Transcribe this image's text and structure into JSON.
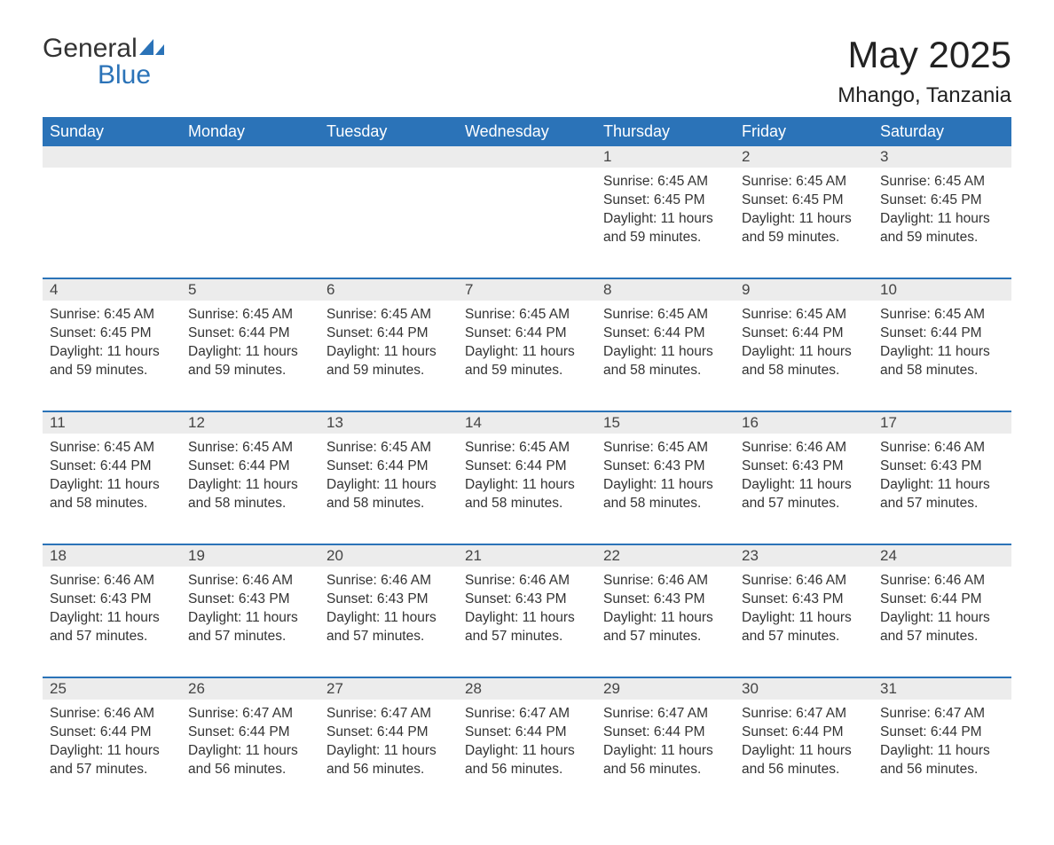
{
  "logo": {
    "word1": "General",
    "word2": "Blue",
    "icon_color": "#2b73b8"
  },
  "header": {
    "title": "May 2025",
    "subtitle": "Mhango, Tanzania"
  },
  "colors": {
    "header_bg": "#2b73b8",
    "header_text": "#ffffff",
    "daynum_bg": "#ececec",
    "border": "#2b73b8"
  },
  "day_labels": [
    "Sunday",
    "Monday",
    "Tuesday",
    "Wednesday",
    "Thursday",
    "Friday",
    "Saturday"
  ],
  "weeks": [
    [
      {
        "empty": true
      },
      {
        "empty": true
      },
      {
        "empty": true
      },
      {
        "empty": true
      },
      {
        "num": "1",
        "sunrise": "6:45 AM",
        "sunset": "6:45 PM",
        "daylight": "11 hours and 59 minutes."
      },
      {
        "num": "2",
        "sunrise": "6:45 AM",
        "sunset": "6:45 PM",
        "daylight": "11 hours and 59 minutes."
      },
      {
        "num": "3",
        "sunrise": "6:45 AM",
        "sunset": "6:45 PM",
        "daylight": "11 hours and 59 minutes."
      }
    ],
    [
      {
        "num": "4",
        "sunrise": "6:45 AM",
        "sunset": "6:45 PM",
        "daylight": "11 hours and 59 minutes."
      },
      {
        "num": "5",
        "sunrise": "6:45 AM",
        "sunset": "6:44 PM",
        "daylight": "11 hours and 59 minutes."
      },
      {
        "num": "6",
        "sunrise": "6:45 AM",
        "sunset": "6:44 PM",
        "daylight": "11 hours and 59 minutes."
      },
      {
        "num": "7",
        "sunrise": "6:45 AM",
        "sunset": "6:44 PM",
        "daylight": "11 hours and 59 minutes."
      },
      {
        "num": "8",
        "sunrise": "6:45 AM",
        "sunset": "6:44 PM",
        "daylight": "11 hours and 58 minutes."
      },
      {
        "num": "9",
        "sunrise": "6:45 AM",
        "sunset": "6:44 PM",
        "daylight": "11 hours and 58 minutes."
      },
      {
        "num": "10",
        "sunrise": "6:45 AM",
        "sunset": "6:44 PM",
        "daylight": "11 hours and 58 minutes."
      }
    ],
    [
      {
        "num": "11",
        "sunrise": "6:45 AM",
        "sunset": "6:44 PM",
        "daylight": "11 hours and 58 minutes."
      },
      {
        "num": "12",
        "sunrise": "6:45 AM",
        "sunset": "6:44 PM",
        "daylight": "11 hours and 58 minutes."
      },
      {
        "num": "13",
        "sunrise": "6:45 AM",
        "sunset": "6:44 PM",
        "daylight": "11 hours and 58 minutes."
      },
      {
        "num": "14",
        "sunrise": "6:45 AM",
        "sunset": "6:44 PM",
        "daylight": "11 hours and 58 minutes."
      },
      {
        "num": "15",
        "sunrise": "6:45 AM",
        "sunset": "6:43 PM",
        "daylight": "11 hours and 58 minutes."
      },
      {
        "num": "16",
        "sunrise": "6:46 AM",
        "sunset": "6:43 PM",
        "daylight": "11 hours and 57 minutes."
      },
      {
        "num": "17",
        "sunrise": "6:46 AM",
        "sunset": "6:43 PM",
        "daylight": "11 hours and 57 minutes."
      }
    ],
    [
      {
        "num": "18",
        "sunrise": "6:46 AM",
        "sunset": "6:43 PM",
        "daylight": "11 hours and 57 minutes."
      },
      {
        "num": "19",
        "sunrise": "6:46 AM",
        "sunset": "6:43 PM",
        "daylight": "11 hours and 57 minutes."
      },
      {
        "num": "20",
        "sunrise": "6:46 AM",
        "sunset": "6:43 PM",
        "daylight": "11 hours and 57 minutes."
      },
      {
        "num": "21",
        "sunrise": "6:46 AM",
        "sunset": "6:43 PM",
        "daylight": "11 hours and 57 minutes."
      },
      {
        "num": "22",
        "sunrise": "6:46 AM",
        "sunset": "6:43 PM",
        "daylight": "11 hours and 57 minutes."
      },
      {
        "num": "23",
        "sunrise": "6:46 AM",
        "sunset": "6:43 PM",
        "daylight": "11 hours and 57 minutes."
      },
      {
        "num": "24",
        "sunrise": "6:46 AM",
        "sunset": "6:44 PM",
        "daylight": "11 hours and 57 minutes."
      }
    ],
    [
      {
        "num": "25",
        "sunrise": "6:46 AM",
        "sunset": "6:44 PM",
        "daylight": "11 hours and 57 minutes."
      },
      {
        "num": "26",
        "sunrise": "6:47 AM",
        "sunset": "6:44 PM",
        "daylight": "11 hours and 56 minutes."
      },
      {
        "num": "27",
        "sunrise": "6:47 AM",
        "sunset": "6:44 PM",
        "daylight": "11 hours and 56 minutes."
      },
      {
        "num": "28",
        "sunrise": "6:47 AM",
        "sunset": "6:44 PM",
        "daylight": "11 hours and 56 minutes."
      },
      {
        "num": "29",
        "sunrise": "6:47 AM",
        "sunset": "6:44 PM",
        "daylight": "11 hours and 56 minutes."
      },
      {
        "num": "30",
        "sunrise": "6:47 AM",
        "sunset": "6:44 PM",
        "daylight": "11 hours and 56 minutes."
      },
      {
        "num": "31",
        "sunrise": "6:47 AM",
        "sunset": "6:44 PM",
        "daylight": "11 hours and 56 minutes."
      }
    ]
  ],
  "labels": {
    "sunrise": "Sunrise: ",
    "sunset": "Sunset: ",
    "daylight": "Daylight: "
  }
}
